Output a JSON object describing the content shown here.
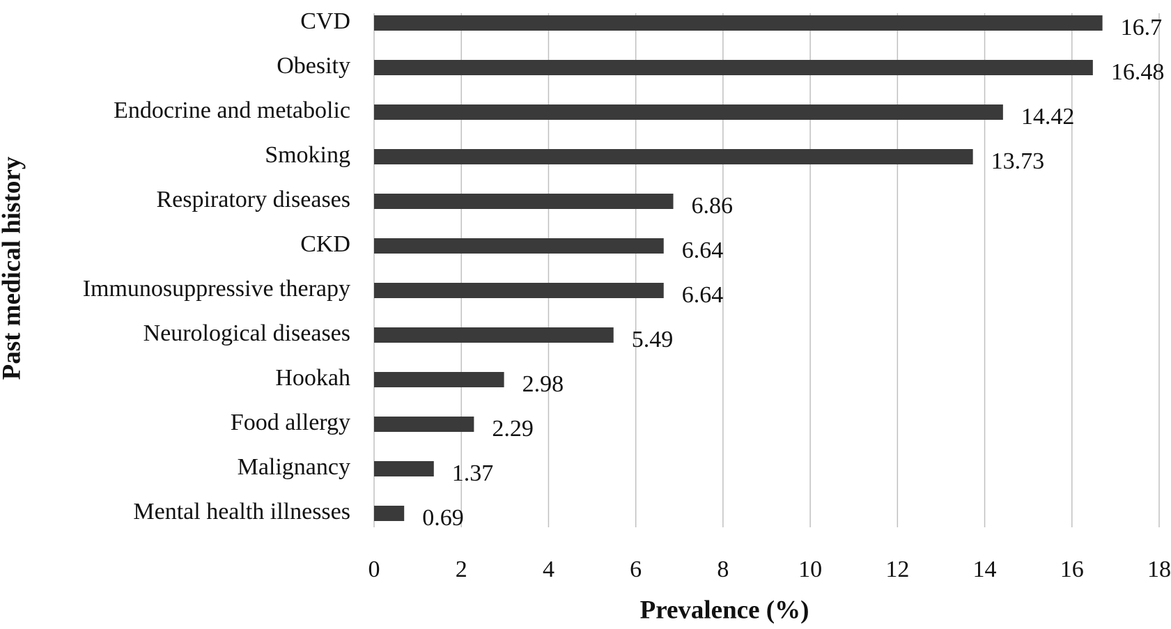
{
  "chart_data": {
    "type": "bar",
    "orientation": "horizontal",
    "xlabel": "Prevalence (%)",
    "ylabel": "Past medical history",
    "categories": [
      "CVD",
      "Obesity",
      "Endocrine and metabolic",
      "Smoking",
      "Respiratory diseases",
      "CKD",
      "Immunosuppressive therapy",
      "Neurological diseases",
      "Hookah",
      "Food allergy",
      "Malignancy",
      "Mental health illnesses"
    ],
    "values": [
      16.7,
      16.48,
      14.42,
      13.73,
      6.86,
      6.64,
      6.64,
      5.49,
      2.98,
      2.29,
      1.37,
      0.69
    ],
    "color": "#3a3a3a",
    "xlim": [
      0,
      18
    ],
    "xticks": [
      0,
      2,
      4,
      6,
      8,
      10,
      12,
      14,
      16,
      18
    ],
    "grid": true
  }
}
